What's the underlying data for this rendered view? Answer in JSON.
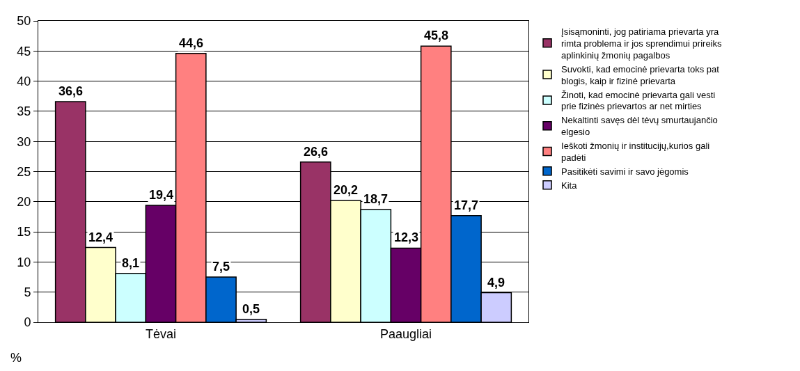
{
  "chart_data": {
    "type": "bar",
    "ylabel": "%",
    "categories": [
      "Tėvai",
      "Paaugliai"
    ],
    "series": [
      {
        "name": "Įsisąmoninti, jog patiriama prievarta yra rimta problema ir jos sprendimui prireiks aplinkinių žmonių pagalbos",
        "color": "#993366",
        "values": [
          36.6,
          26.6
        ],
        "value_labels": [
          "36,6",
          "26,6"
        ]
      },
      {
        "name": "Suvokti, kad emocinė prievarta toks pat blogis, kaip ir fizinė prievarta",
        "color": "#ffffcc",
        "values": [
          12.4,
          20.2
        ],
        "value_labels": [
          "12,4",
          "20,2"
        ]
      },
      {
        "name": "Žinoti, kad emocinė prievarta gali vesti prie fizinės prievartos ar net mirties",
        "color": "#ccffff",
        "values": [
          8.1,
          18.7
        ],
        "value_labels": [
          "8,1",
          "18,7"
        ]
      },
      {
        "name": "Nekaltinti savęs dėl tėvų smurtaujančio elgesio",
        "color": "#660066",
        "values": [
          19.4,
          12.3
        ],
        "value_labels": [
          "19,4",
          "12,3"
        ]
      },
      {
        "name": "Ieškoti žmonių ir institucijų,kurios gali padėti",
        "color": "#ff8080",
        "values": [
          44.6,
          45.8
        ],
        "value_labels": [
          "44,6",
          "45,8"
        ]
      },
      {
        "name": "Pasitikėti savimi ir savo jėgomis",
        "color": "#0066cc",
        "values": [
          7.5,
          17.7
        ],
        "value_labels": [
          "7,5",
          "17,7"
        ]
      },
      {
        "name": "Kita",
        "color": "#ccccff",
        "values": [
          0.5,
          4.9
        ],
        "value_labels": [
          "0,5",
          "4,9"
        ]
      }
    ],
    "ylim": [
      0,
      50
    ],
    "yticks": [
      0,
      5,
      10,
      15,
      20,
      25,
      30,
      35,
      40,
      45,
      50
    ],
    "grid": "y",
    "legend": "right"
  }
}
